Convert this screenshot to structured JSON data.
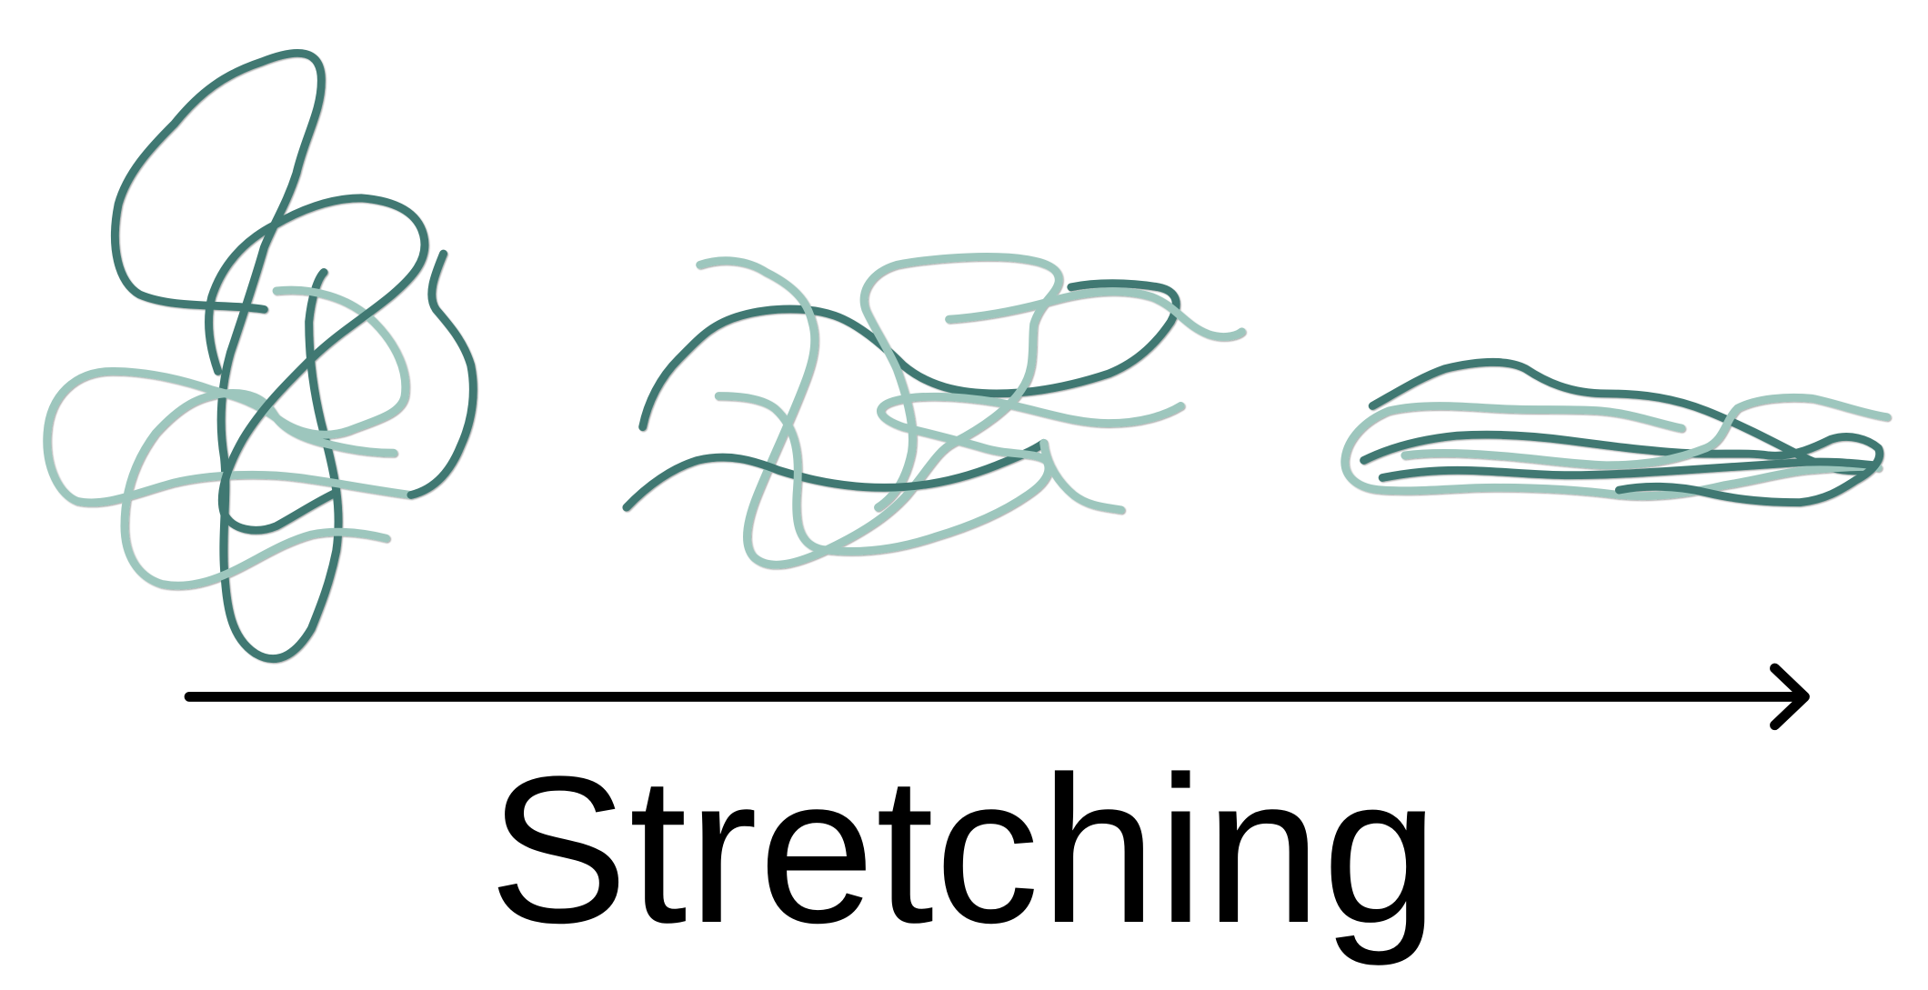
{
  "caption": "Stretching",
  "colors": {
    "strand_dark": "#3f7872",
    "strand_light": "#9dc6bd",
    "arrow": "#000000",
    "text": "#000000",
    "background": "#ffffff"
  },
  "stages": [
    {
      "name": "coiled",
      "description_visible": false
    },
    {
      "name": "partially-stretched",
      "description_visible": false
    },
    {
      "name": "aligned",
      "description_visible": false
    }
  ]
}
